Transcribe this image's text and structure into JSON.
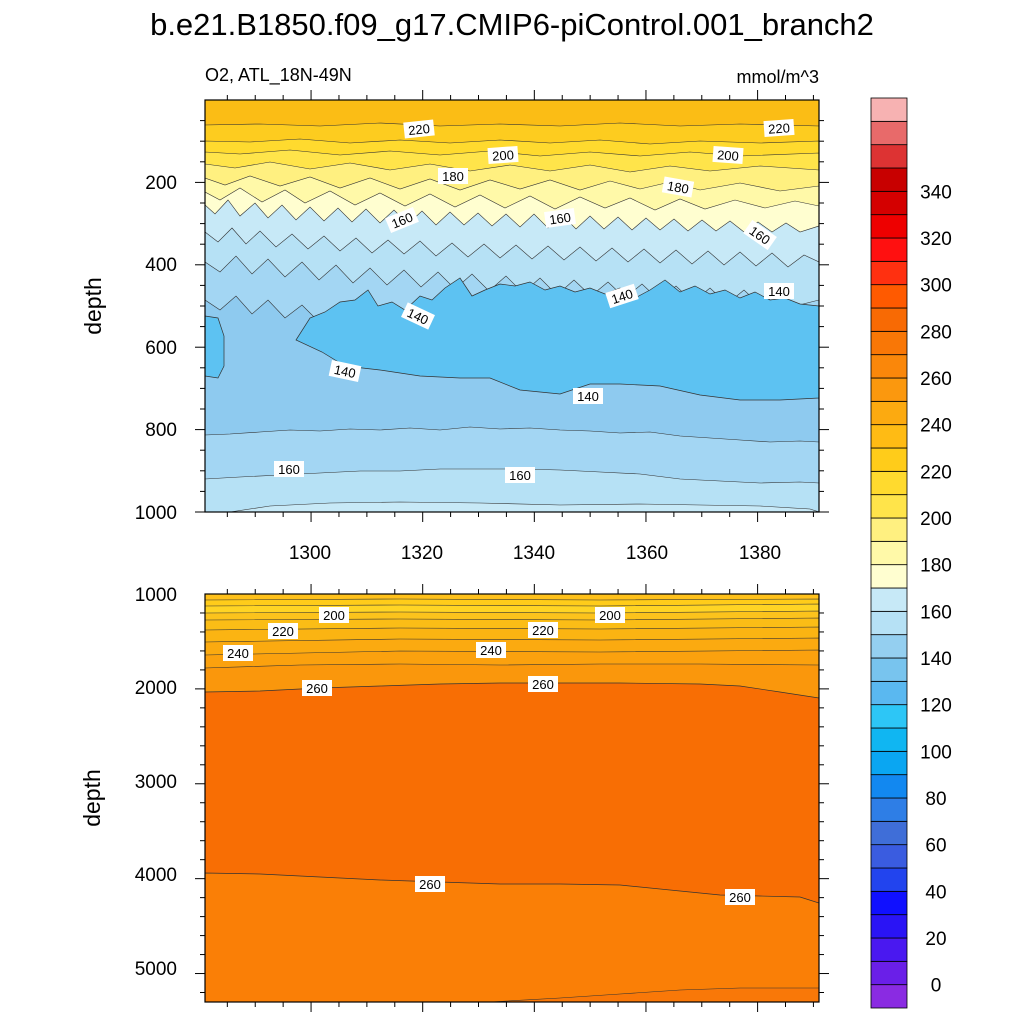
{
  "title": "b.e21.B1850.f09_g17.CMIP6-piControl.001_branch2",
  "chart_data": [
    {
      "type": "contour",
      "panel": "upper",
      "left_string": "O2, ATL_18N-49N",
      "right_string": "mmol/m^3",
      "ylabel": "depth",
      "xlabel": "",
      "x_range": [
        1281,
        1391
      ],
      "y_range": [
        1000,
        0
      ],
      "x_ticks": [
        1300,
        1320,
        1340,
        1360,
        1380
      ],
      "y_ticks": [
        200,
        400,
        600,
        800,
        1000
      ],
      "contour_labels": [
        {
          "text": "220",
          "x": 1320,
          "y": 110,
          "angle": -6
        },
        {
          "text": "220",
          "x": 1381,
          "y": 108,
          "angle": -4
        },
        {
          "text": "200",
          "x": 1333,
          "y": 175,
          "angle": -4
        },
        {
          "text": "200",
          "x": 1366,
          "y": 178,
          "angle": 4
        },
        {
          "text": "180",
          "x": 1326,
          "y": 235,
          "angle": 0
        },
        {
          "text": "180",
          "x": 1365,
          "y": 250,
          "angle": 10
        },
        {
          "text": "160",
          "x": 1317,
          "y": 285,
          "angle": -22
        },
        {
          "text": "160",
          "x": 1344,
          "y": 285,
          "angle": -8
        },
        {
          "text": "160",
          "x": 1374,
          "y": 325,
          "angle": 35
        },
        {
          "text": "140",
          "x": 1318,
          "y": 540,
          "angle": 25
        },
        {
          "text": "140",
          "x": 1359,
          "y": 488,
          "angle": -18
        },
        {
          "text": "140",
          "x": 1380,
          "y": 470,
          "angle": 0
        },
        {
          "text": "140",
          "x": 1304,
          "y": 655,
          "angle": 12
        },
        {
          "text": "140",
          "x": 1349,
          "y": 715,
          "angle": 0
        },
        {
          "text": "160",
          "x": 1297,
          "y": 915,
          "angle": 0
        },
        {
          "text": "160",
          "x": 1345,
          "y": 920,
          "angle": 0
        }
      ]
    },
    {
      "type": "contour",
      "panel": "lower",
      "ylabel": "depth",
      "xlabel": "",
      "x_range": [
        1281,
        1391
      ],
      "y_range": [
        5300,
        1000
      ],
      "y_ticks": [
        1000,
        2000,
        3000,
        4000,
        5000
      ],
      "contour_labels": [
        {
          "text": "200",
          "x": 1303,
          "y": 1220
        },
        {
          "text": "200",
          "x": 1360,
          "y": 1220
        },
        {
          "text": "220",
          "x": 1294,
          "y": 1380
        },
        {
          "text": "220",
          "x": 1342,
          "y": 1370
        },
        {
          "text": "240",
          "x": 1287,
          "y": 1630
        },
        {
          "text": "240",
          "x": 1336,
          "y": 1600
        },
        {
          "text": "260",
          "x": 1300,
          "y": 2020
        },
        {
          "text": "260",
          "x": 1342,
          "y": 1980
        },
        {
          "text": "260",
          "x": 1319,
          "y": 4120
        },
        {
          "text": "260",
          "x": 1374,
          "y": 4260
        }
      ]
    }
  ],
  "colorbar": {
    "labels": [
      "0",
      "20",
      "40",
      "60",
      "80",
      "100",
      "120",
      "140",
      "160",
      "180",
      "200",
      "220",
      "240",
      "260",
      "280",
      "300",
      "320",
      "340"
    ],
    "colors": [
      "#8a2be2",
      "#6a1fe8",
      "#4a18f0",
      "#2a14f5",
      "#1010ff",
      "#2244ee",
      "#3a5ce0",
      "#3f6ed8",
      "#2e7ee6",
      "#1288f0",
      "#0aa6f2",
      "#10b6f2",
      "#2dc6f6",
      "#5ab8f0",
      "#78c4ee",
      "#94cff0",
      "#b6e1f5",
      "#c7e9f7",
      "#fffed0",
      "#fff9a8",
      "#fff080",
      "#ffe44a",
      "#ffda2e",
      "#ffcc1a",
      "#ffbb14",
      "#fcaa10",
      "#fb980e",
      "#fa870a",
      "#f97706",
      "#f86a04",
      "#ff5a00",
      "#ff3010",
      "#ff1010",
      "#ee0000",
      "#d40000",
      "#c80000",
      "#dd3333",
      "#e86a6a",
      "#f7b2b2"
    ]
  }
}
